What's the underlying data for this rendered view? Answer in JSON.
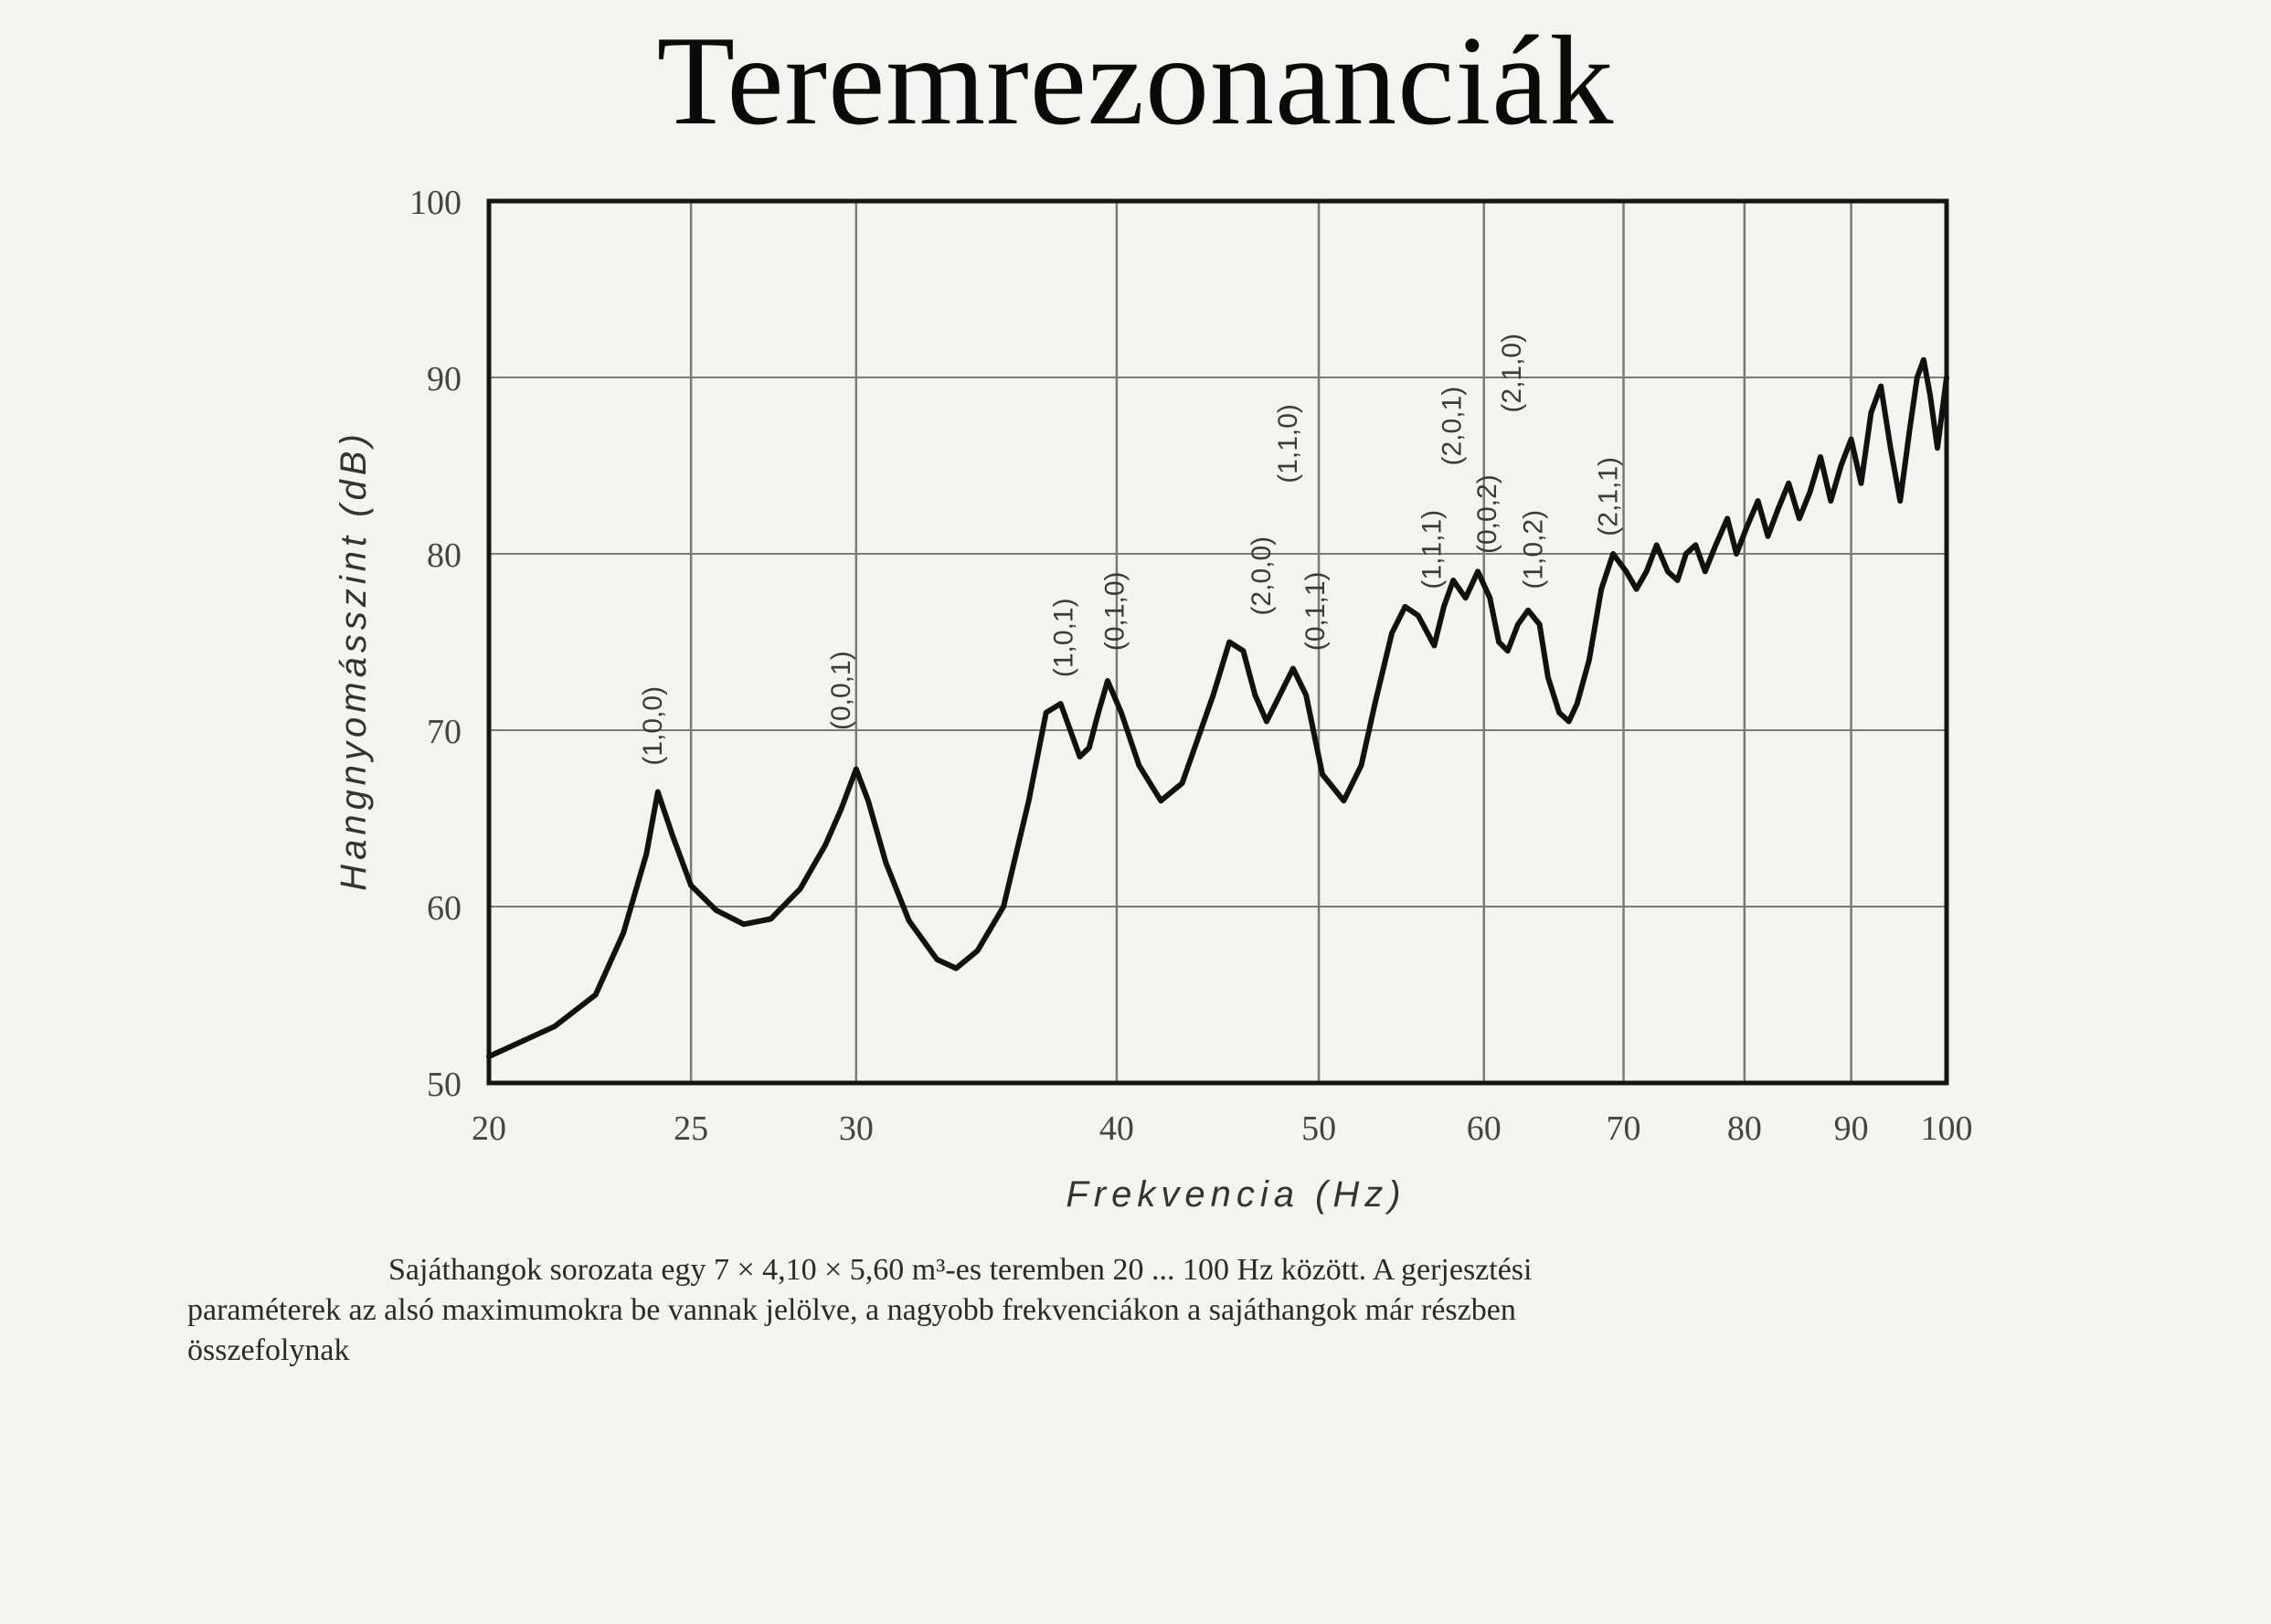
{
  "title": "Teremrezonanciák",
  "colors": {
    "curve": "#111111",
    "grid": "#7a7a7a",
    "frame": "#151515",
    "text": "#2a2a2a"
  },
  "caption": {
    "line1": "Sajáthangok sorozata egy 7 × 4,10 × 5,60 m³-es teremben 20 ... 100 Hz között. A gerjesztési",
    "line2": "paraméterek az alsó maximumokra be vannak jelölve, a nagyobb frekvenciákon a sajáthangok már részben",
    "line3": "összefolynak"
  },
  "chart_data": {
    "type": "line",
    "xlabel": "Frekvencia (Hz)",
    "ylabel": "Hangnyomásszint (dB)",
    "xscale": "log",
    "xlim": [
      20,
      100
    ],
    "ylim": [
      50,
      100
    ],
    "xticks": [
      20,
      25,
      30,
      40,
      50,
      60,
      70,
      80,
      90,
      100
    ],
    "xtick_labels": [
      "20",
      "25",
      "30",
      "40",
      "50",
      "60",
      "70",
      "80",
      "90",
      "100"
    ],
    "yticks": [
      50,
      60,
      70,
      80,
      90,
      100
    ],
    "ytick_labels": [
      "50",
      "60",
      "70",
      "80",
      "90",
      "100"
    ],
    "grid": true,
    "series": [
      {
        "x": [
          20,
          21.5,
          22.5,
          23.2,
          23.8,
          24.1,
          24.5,
          25,
          25.7,
          26.5,
          27.3,
          28.2,
          29,
          29.5,
          30,
          30.4,
          31,
          31.8,
          32.8,
          33.5,
          34.3,
          35.3,
          36.3,
          37.0,
          37.6,
          38.0,
          38.4,
          38.8,
          39.2,
          39.6,
          40.2,
          41.0,
          42,
          43,
          44.5,
          45.3,
          46.0,
          46.6,
          47.2,
          47.9,
          48.6,
          49.3,
          50.2,
          51.4,
          52.4,
          53.2,
          54.2,
          55.0,
          55.8,
          56.8,
          57.4,
          58,
          58.8,
          59.6,
          60.4,
          61.0,
          61.6,
          62.3,
          63.0,
          63.8,
          64.4,
          65.2,
          65.9,
          66.5,
          67.4,
          68.3,
          69.2,
          70.2,
          71.0,
          71.8,
          72.6,
          73.5,
          74.3,
          75.0,
          75.8,
          76.6,
          77.5,
          78.5,
          79.3,
          80.2,
          81.2,
          82.1,
          83.0,
          84,
          85,
          86,
          87,
          88,
          89,
          90,
          91,
          92,
          93,
          94,
          95,
          96,
          96.8,
          97.5,
          98.2,
          99,
          99.5,
          100
        ],
        "y": [
          51.5,
          53.2,
          55,
          58.5,
          63,
          66.5,
          64,
          61.2,
          59.8,
          59,
          59.3,
          61,
          63.5,
          65.5,
          67.8,
          66,
          62.5,
          59.2,
          57,
          56.5,
          57.5,
          60,
          66,
          71,
          71.5,
          70,
          68.5,
          69,
          71,
          72.8,
          71,
          68,
          66,
          67,
          72,
          75,
          74.5,
          72,
          70.5,
          72,
          73.5,
          72,
          67.5,
          66,
          68,
          71.5,
          75.5,
          77,
          76.5,
          74.8,
          77,
          78.5,
          77.5,
          79,
          77.5,
          75,
          74.5,
          76,
          76.8,
          76,
          73,
          71,
          70.5,
          71.5,
          74,
          78,
          80,
          79,
          78,
          79,
          80.5,
          79,
          78.5,
          80,
          80.5,
          79,
          80.5,
          82,
          80,
          81.5,
          83,
          81,
          82.5,
          84,
          82,
          83.5,
          85.5,
          83,
          85,
          86.5,
          84,
          88,
          89.5,
          86,
          83,
          87,
          90,
          91,
          89,
          86,
          88,
          90
        ]
      }
    ],
    "annotations": [
      {
        "text": "(1,0,0)",
        "x": 24.2,
        "y": 68
      },
      {
        "text": "(0,0,1)",
        "x": 29.8,
        "y": 70
      },
      {
        "text": "(1,0,1)",
        "x": 38.1,
        "y": 73
      },
      {
        "text": "(0,1,0)",
        "x": 40.3,
        "y": 74.5
      },
      {
        "text": "(2,0,0)",
        "x": 47.4,
        "y": 76.5
      },
      {
        "text": "(1,1,0)",
        "x": 48.8,
        "y": 84
      },
      {
        "text": "(0,1,1)",
        "x": 50.3,
        "y": 74.5
      },
      {
        "text": "(1,1,1)",
        "x": 57.2,
        "y": 78
      },
      {
        "text": "(2,0,1)",
        "x": 58.5,
        "y": 85
      },
      {
        "text": "(0,0,2)",
        "x": 60.8,
        "y": 80
      },
      {
        "text": "(2,1,0)",
        "x": 62.5,
        "y": 88
      },
      {
        "text": "(1,0,2)",
        "x": 64.0,
        "y": 78
      },
      {
        "text": "(2,1,1)",
        "x": 69.5,
        "y": 81
      }
    ]
  }
}
